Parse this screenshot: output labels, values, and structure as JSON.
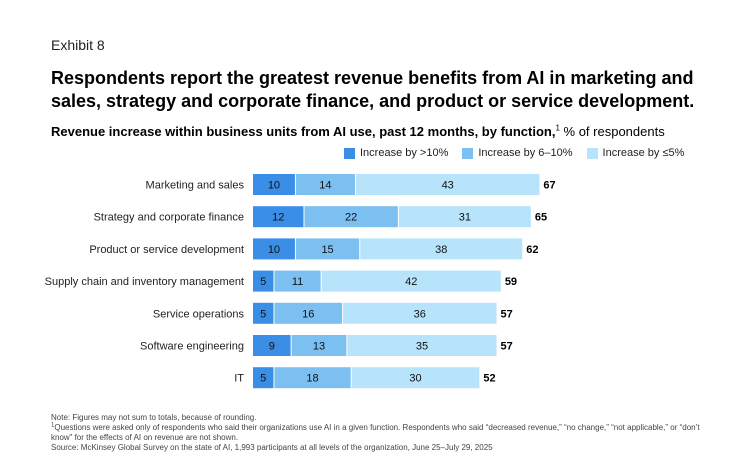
{
  "exhibit": "Exhibit 8",
  "headline": "Respondents report the greatest revenue benefits from AI in marketing and sales, strategy and corporate finance, and product or service development.",
  "subtitle": {
    "bold": "Revenue increase within business units from AI use, past 12 months, by function,",
    "footnote_mark": "1",
    "unit": " % of respondents"
  },
  "colors": {
    "dark": "#3a8ee6",
    "mid": "#7cc0f2",
    "light": "#b8e4fb"
  },
  "chart_data": {
    "type": "bar",
    "orientation": "horizontal",
    "stacked": true,
    "categories": [
      "Marketing and sales",
      "Strategy and corporate finance",
      "Product or service development",
      "Supply chain and inventory management",
      "Service operations",
      "Software engineering",
      "IT"
    ],
    "series": [
      {
        "name": "Increase by >10%",
        "color_key": "dark",
        "values": [
          10,
          12,
          10,
          5,
          5,
          9,
          5
        ]
      },
      {
        "name": "Increase by 6–10%",
        "color_key": "mid",
        "values": [
          14,
          22,
          15,
          11,
          16,
          13,
          18
        ]
      },
      {
        "name": "Increase by ≤5%",
        "color_key": "light",
        "values": [
          43,
          31,
          38,
          42,
          36,
          35,
          30
        ]
      }
    ],
    "totals": [
      67,
      65,
      62,
      59,
      57,
      57,
      52
    ],
    "xlim": [
      0,
      67
    ]
  },
  "notes": {
    "line1": "Note: Figures may not sum to totals, because of rounding.",
    "footnote_mark": "1",
    "line2": "Questions were asked only of respondents who said their organizations use AI in a given function. Respondents who said “decreased revenue,” “no change,” “not applicable,” or “don’t know” for the effects of AI on revenue are not shown.",
    "line3": "Source: McKinsey Global Survey on the state of AI, 1,993 participants at all levels of the organization, June 25–July 29, 2025"
  }
}
